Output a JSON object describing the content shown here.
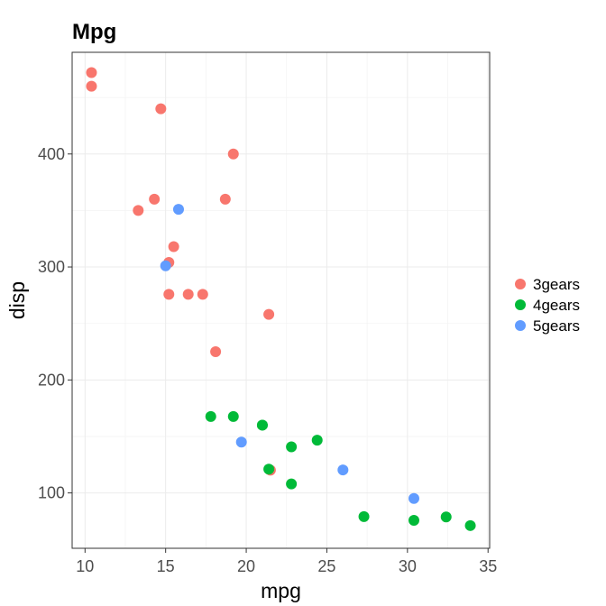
{
  "chart_data": {
    "type": "scatter",
    "title": "Mpg",
    "xlabel": "mpg",
    "ylabel": "disp",
    "xlim": [
      9.2,
      35.1
    ],
    "ylim": [
      51,
      490
    ],
    "x_ticks": [
      10,
      15,
      20,
      25,
      30,
      35
    ],
    "y_ticks": [
      100,
      200,
      300,
      400
    ],
    "grid": true,
    "legend_position": "right",
    "series": [
      {
        "name": "3gears",
        "color": "#F8766D",
        "points": [
          [
            21.4,
            258
          ],
          [
            18.7,
            360
          ],
          [
            18.1,
            225
          ],
          [
            14.3,
            360
          ],
          [
            16.4,
            275.8
          ],
          [
            17.3,
            275.8
          ],
          [
            15.2,
            275.8
          ],
          [
            10.4,
            472
          ],
          [
            10.4,
            460
          ],
          [
            14.7,
            440
          ],
          [
            21.5,
            120.1
          ],
          [
            15.5,
            318
          ],
          [
            15.2,
            304
          ],
          [
            13.3,
            350
          ],
          [
            19.2,
            400
          ]
        ]
      },
      {
        "name": "4gears",
        "color": "#00BA38",
        "points": [
          [
            21.0,
            160
          ],
          [
            21.0,
            160
          ],
          [
            22.8,
            108
          ],
          [
            24.4,
            146.7
          ],
          [
            22.8,
            140.8
          ],
          [
            19.2,
            167.6
          ],
          [
            17.8,
            167.6
          ],
          [
            32.4,
            78.7
          ],
          [
            30.4,
            75.7
          ],
          [
            33.9,
            71.1
          ],
          [
            27.3,
            79
          ],
          [
            21.4,
            121
          ]
        ]
      },
      {
        "name": "5gears",
        "color": "#619CFF",
        "points": [
          [
            26.0,
            120.3
          ],
          [
            30.4,
            95.1
          ],
          [
            15.8,
            351
          ],
          [
            19.7,
            145
          ],
          [
            15.0,
            301
          ]
        ]
      }
    ]
  }
}
